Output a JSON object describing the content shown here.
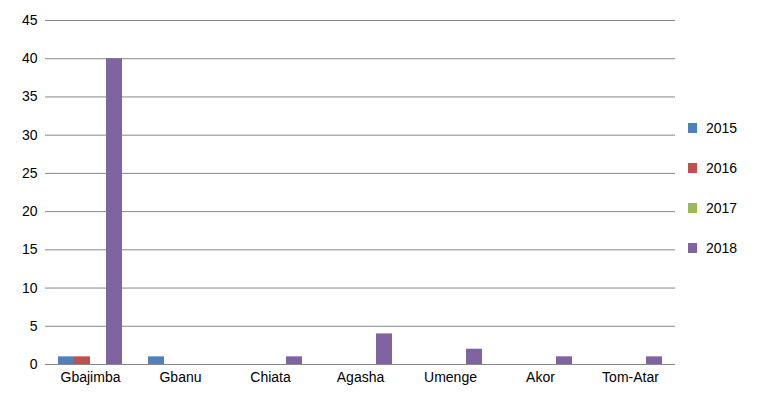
{
  "chart_data": {
    "type": "bar",
    "categories": [
      "Gbajimba",
      "Gbanu",
      "Chiata",
      "Agasha",
      "Umenge",
      "Akor",
      "Tom-Atar"
    ],
    "series": [
      {
        "name": "2015",
        "color": "#4f81bd",
        "values": [
          1,
          1,
          0,
          0,
          0,
          0,
          0
        ]
      },
      {
        "name": "2016",
        "color": "#c0504d",
        "values": [
          1,
          0,
          0,
          0,
          0,
          0,
          0
        ]
      },
      {
        "name": "2017",
        "color": "#9bbb59",
        "values": [
          0,
          0,
          0,
          0,
          0,
          0,
          0
        ]
      },
      {
        "name": "2018",
        "color": "#8064a2",
        "values": [
          40,
          0,
          1,
          4,
          2,
          1,
          1
        ]
      }
    ],
    "ylim": [
      0,
      45
    ],
    "yticks": [
      0,
      5,
      10,
      15,
      20,
      25,
      30,
      35,
      40,
      45
    ],
    "grid": true,
    "legend": "right"
  }
}
